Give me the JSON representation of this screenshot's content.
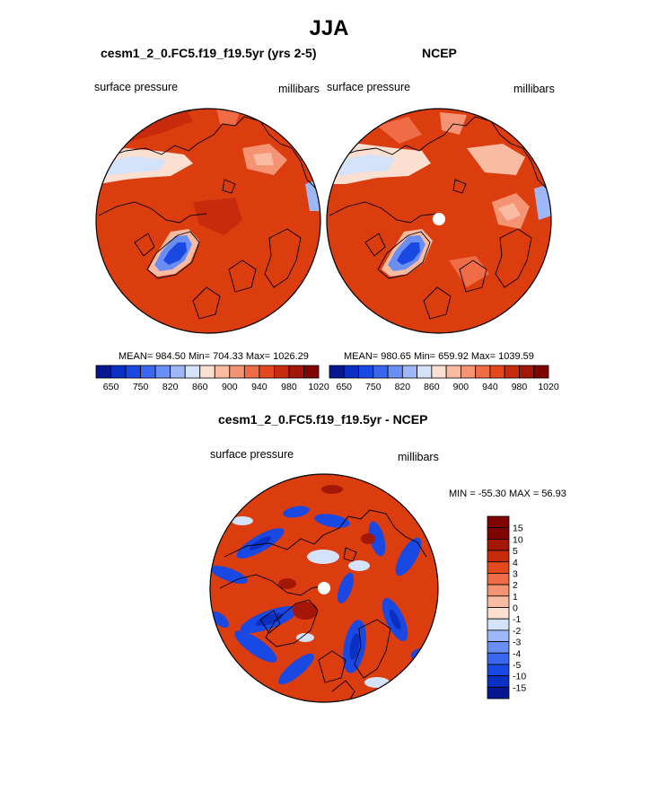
{
  "page": {
    "title": "JJA"
  },
  "colors": {
    "map_base": "#dc3d0e",
    "land": "#000000",
    "palette_abs": [
      "#07178f",
      "#0a2fc2",
      "#1a48e2",
      "#3a66f0",
      "#6a8ff4",
      "#9db7f7",
      "#d4e2fa",
      "#fbe0d2",
      "#f9bca3",
      "#f59474",
      "#ef6c47",
      "#e4481d",
      "#c72b0b",
      "#a41606",
      "#810404"
    ],
    "palette_diff": [
      "#810404",
      "#a41606",
      "#c72b0b",
      "#e4481d",
      "#ef6c47",
      "#f59474",
      "#f9bca3",
      "#fbe0d2",
      "#d4e2fa",
      "#9db7f7",
      "#6a8ff4",
      "#3a66f0",
      "#1a48e2",
      "#0a2fc2",
      "#07178f"
    ]
  },
  "chart_data": [
    {
      "type": "heatmap",
      "projection": "north-polar-stereographic",
      "title": "cesm1_2_0.FC5.f19_f19.5yr (yrs 2-5)",
      "left_label": "surface pressure",
      "right_label": "millibars",
      "stats": {
        "mean": "984.50",
        "min": "704.33",
        "max": "1026.29"
      },
      "stats_text": "MEAN= 984.50  Min= 704.33  Max= 1026.29",
      "colorbar": {
        "orientation": "horizontal",
        "tick_labels": [
          "650",
          "750",
          "820",
          "860",
          "900",
          "940",
          "980",
          "1020"
        ]
      }
    },
    {
      "type": "heatmap",
      "projection": "north-polar-stereographic",
      "title": "NCEP",
      "left_label": "surface pressure",
      "right_label": "millibars",
      "stats": {
        "mean": "980.65",
        "min": "659.92",
        "max": "1039.59"
      },
      "stats_text": "MEAN= 980.65  Min= 659.92  Max= 1039.59",
      "colorbar": {
        "orientation": "horizontal",
        "tick_labels": [
          "650",
          "750",
          "820",
          "860",
          "900",
          "940",
          "980",
          "1020"
        ]
      }
    },
    {
      "type": "heatmap",
      "projection": "north-polar-stereographic",
      "title": "cesm1_2_0.FC5.f19_f19.5yr - NCEP",
      "left_label": "surface pressure",
      "right_label": "millibars",
      "stats": {
        "min": "-55.30",
        "max": "56.93"
      },
      "stats_text": "MIN = -55.30 MAX =  56.93",
      "colorbar": {
        "orientation": "vertical",
        "tick_labels": [
          "15",
          "10",
          "5",
          "4",
          "3",
          "2",
          "1",
          "0",
          "-1",
          "-2",
          "-3",
          "-4",
          "-5",
          "-10",
          "-15"
        ]
      }
    }
  ]
}
